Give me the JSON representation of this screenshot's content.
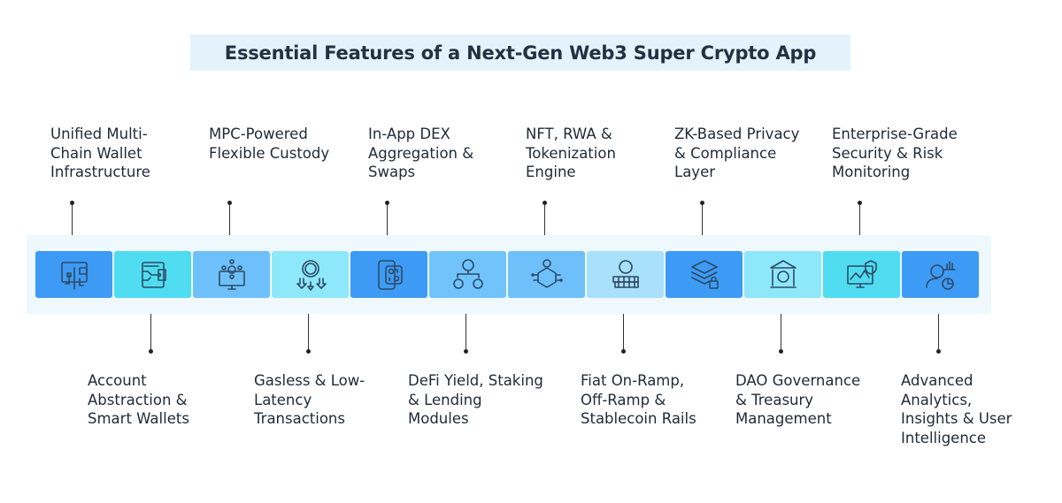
{
  "title": "Essential Features of a Next-Gen Web3 Super Crypto App",
  "features": [
    {
      "label": "Unified Multi-\nChain Wallet\nInfrastructure",
      "position": "top",
      "icon": "wallet-network-icon",
      "color": "#3d9bf5"
    },
    {
      "label": "Account\nAbstraction &\nSmart Wallets",
      "position": "bottom",
      "icon": "smart-wallet-icon",
      "color": "#4fdcf0"
    },
    {
      "label": "MPC-Powered\nFlexible Custody",
      "position": "top",
      "icon": "monitor-network-icon",
      "color": "#6ec0fa"
    },
    {
      "label": "Gasless & Low-\nLatency\nTransactions",
      "position": "bottom",
      "icon": "coin-arrows-down-icon",
      "color": "#8ee8fb"
    },
    {
      "label": "In-App DEX\nAggregation &\nSwaps",
      "position": "top",
      "icon": "phone-swap-icon",
      "color": "#3d9bf5"
    },
    {
      "label": "DeFi Yield, Staking\n& Lending\nModules",
      "position": "bottom",
      "icon": "bitcoin-split-icon",
      "color": "#70c4fb"
    },
    {
      "label": "NFT, RWA &\nTokenization\nEngine",
      "position": "top",
      "icon": "nft-icon",
      "color": "#6ec0fa"
    },
    {
      "label": "Fiat On-Ramp,\nOff-Ramp &\nStablecoin Rails",
      "position": "bottom",
      "icon": "coin-stack-icon",
      "color": "#a9e0fb"
    },
    {
      "label": "ZK-Based Privacy\n& Compliance\nLayer",
      "position": "top",
      "icon": "layers-lock-icon",
      "color": "#3d9bf5"
    },
    {
      "label": "DAO Governance\n& Treasury\nManagement",
      "position": "bottom",
      "icon": "bank-icon",
      "color": "#8ee8fb"
    },
    {
      "label": "Enterprise-Grade\nSecurity & Risk\nMonitoring",
      "position": "top",
      "icon": "monitor-shield-icon",
      "color": "#4fdcf0"
    },
    {
      "label": "Advanced\nAnalytics,\nInsights & User\nIntelligence",
      "position": "bottom",
      "icon": "user-analytics-icon",
      "color": "#3d9bf5"
    }
  ]
}
